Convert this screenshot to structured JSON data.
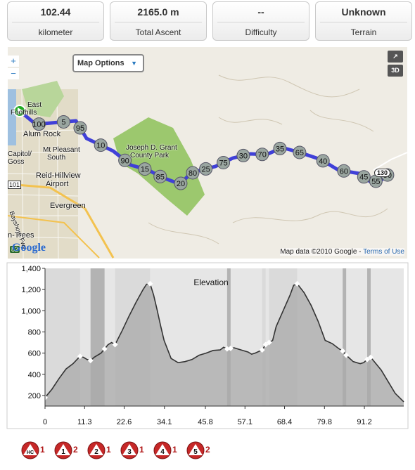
{
  "stats": [
    {
      "value": "102.44",
      "label": "kilometer"
    },
    {
      "value": "2165.0 m",
      "label": "Total Ascent"
    },
    {
      "value": "--",
      "label": "Difficulty"
    },
    {
      "value": "Unknown",
      "label": "Terrain"
    }
  ],
  "map": {
    "options_label": "Map Options",
    "zoom_in": "+",
    "zoom_out": "−",
    "fullscreen_label": "↗",
    "view3d_label": "3D",
    "attribution_prefix": "Map data ©2010 Google - ",
    "terms_link": "Terms of Use",
    "logo": "Google",
    "park_label_1": "Joseph D. Grant",
    "park_label_2": "County Park",
    "place_labels": [
      "East",
      "Foothills",
      "Alum Rock",
      "Mt Pleasant",
      "South",
      "Capitol/",
      "Goss",
      "Reid-Hillview",
      "Airport",
      "Evergreen",
      "n-Trees",
      "Bayshore Fwy"
    ],
    "road_shields": [
      "101",
      "82",
      "130"
    ],
    "km_markers": [
      "100",
      "5",
      "95",
      "10",
      "90",
      "15",
      "85",
      "20",
      "80",
      "25",
      "75",
      "30",
      "70",
      "35",
      "65",
      "40",
      "60",
      "45",
      "55",
      "50"
    ],
    "colors": {
      "route": "#4040d8",
      "park": "#9cc86e",
      "water": "#9ec0e0",
      "urban": "#e2dcc8"
    }
  },
  "chart_data": {
    "type": "area",
    "title": "Elevation",
    "xlabel": "",
    "ylabel": "",
    "x_ticks": [
      "0",
      "11.3",
      "22.6",
      "34.1",
      "45.8",
      "57.1",
      "68.4",
      "79.8",
      "91.2"
    ],
    "y_ticks": [
      "200",
      "400",
      "600",
      "800",
      "1,000",
      "1,200",
      "1,400"
    ],
    "xlim": [
      0,
      102.44
    ],
    "ylim": [
      100,
      1400
    ],
    "x": [
      0,
      2,
      4,
      6,
      8,
      10,
      11,
      12,
      13,
      14,
      16,
      18,
      19,
      20,
      22,
      24,
      26,
      28,
      29,
      30,
      31,
      32,
      33,
      34,
      36,
      38,
      40,
      42,
      44,
      46,
      48,
      50,
      51,
      52,
      54,
      56,
      58,
      59,
      60,
      62,
      63,
      64,
      65,
      66,
      68,
      70,
      71,
      72,
      74,
      76,
      78,
      80,
      82,
      84,
      85,
      86,
      88,
      90,
      91,
      92,
      93,
      94,
      96,
      98,
      100,
      102.44
    ],
    "y": [
      180,
      260,
      360,
      450,
      500,
      570,
      560,
      540,
      530,
      560,
      600,
      680,
      700,
      680,
      810,
      950,
      1080,
      1200,
      1250,
      1255,
      1150,
      1010,
      860,
      720,
      550,
      510,
      520,
      540,
      580,
      600,
      625,
      630,
      655,
      640,
      650,
      630,
      610,
      590,
      600,
      630,
      680,
      700,
      720,
      850,
      1000,
      1150,
      1240,
      1255,
      1170,
      1050,
      900,
      720,
      690,
      640,
      620,
      580,
      520,
      500,
      510,
      540,
      560,
      520,
      440,
      330,
      220,
      140
    ],
    "climbs": [
      {
        "label": "HC",
        "count": "1"
      },
      {
        "label": "1",
        "count": "2"
      },
      {
        "label": "2",
        "count": "1"
      },
      {
        "label": "3",
        "count": "1"
      },
      {
        "label": "4",
        "count": "1"
      },
      {
        "label": "5",
        "count": "2"
      }
    ],
    "colors": {
      "fill": "#aaaaaa",
      "band_dark": "#888888",
      "band_light": "#cfcfcf",
      "line": "#333333",
      "marker": "#ffffff"
    }
  }
}
